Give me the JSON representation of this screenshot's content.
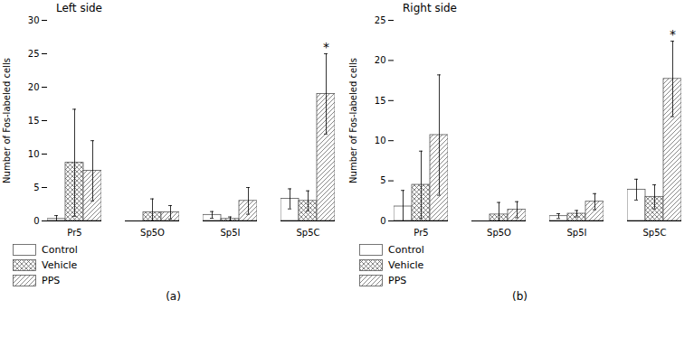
{
  "chart_data": [
    {
      "type": "bar",
      "title": "Left side",
      "caption": "(a)",
      "categories": [
        "Pr5",
        "Sp5O",
        "Sp5I",
        "Sp5C"
      ],
      "series": [
        {
          "name": "Control",
          "values": [
            0.3,
            0.0,
            0.9,
            3.3
          ],
          "errors": [
            0.5,
            0.0,
            0.5,
            1.5
          ]
        },
        {
          "name": "Vehicle",
          "values": [
            8.7,
            1.3,
            0.3,
            3.0
          ],
          "errors": [
            8.0,
            2.0,
            0.3,
            1.5
          ]
        },
        {
          "name": "PPS",
          "values": [
            7.5,
            1.3,
            3.0,
            19.0
          ],
          "errors": [
            4.5,
            1.0,
            2.0,
            6.0
          ]
        }
      ],
      "ylabel": "Number of Fos-labeled cells",
      "ylim": [
        0,
        30
      ],
      "yticks": [
        0,
        5,
        10,
        15,
        20,
        25,
        30
      ],
      "color": "#555555",
      "legend": "bottom",
      "annotations": [
        {
          "text": "*",
          "series": "PPS",
          "category": "Sp5C"
        }
      ]
    },
    {
      "type": "bar",
      "title": "Right side",
      "caption": "(b)",
      "categories": [
        "Pr5",
        "Sp5O",
        "Sp5I",
        "Sp5C"
      ],
      "series": [
        {
          "name": "Control",
          "values": [
            1.8,
            0.0,
            0.6,
            3.9
          ],
          "errors": [
            2.0,
            0.0,
            0.3,
            1.3
          ]
        },
        {
          "name": "Vehicle",
          "values": [
            4.5,
            0.8,
            0.9,
            3.0
          ],
          "errors": [
            4.2,
            1.5,
            0.4,
            1.5
          ]
        },
        {
          "name": "PPS",
          "values": [
            10.7,
            1.4,
            2.4,
            17.7
          ],
          "errors": [
            7.5,
            1.0,
            1.0,
            4.7
          ]
        }
      ],
      "ylabel": "Number of Fos-labeled cells",
      "ylim": [
        0,
        25
      ],
      "yticks": [
        0,
        5,
        10,
        15,
        20,
        25
      ],
      "color": "#555555",
      "legend": "bottom",
      "annotations": [
        {
          "text": "*",
          "series": "PPS",
          "category": "Sp5C"
        }
      ]
    }
  ]
}
